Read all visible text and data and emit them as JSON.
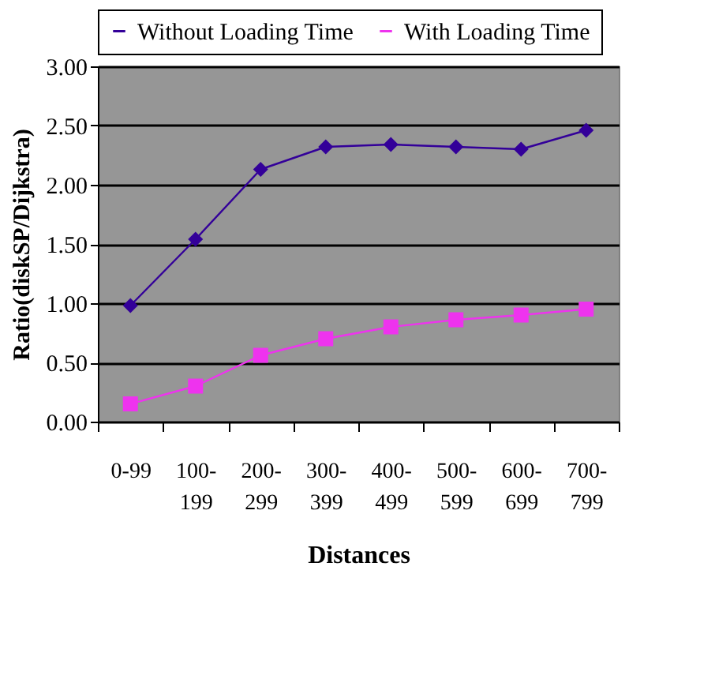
{
  "chart_data": {
    "type": "line",
    "xlabel": "Distances",
    "ylabel": "Ratio(diskSP/Dijkstra)",
    "categories": [
      "0-99",
      "100-199",
      "200-299",
      "300-399",
      "400-499",
      "500-599",
      "600-699",
      "700-799"
    ],
    "series": [
      {
        "name": "Without Loading Time",
        "color": "#330099",
        "marker": "diamond",
        "values": [
          0.98,
          1.54,
          2.13,
          2.32,
          2.34,
          2.32,
          2.3,
          2.46
        ]
      },
      {
        "name": "With Loading Time",
        "color": "#ee33ee",
        "marker": "square",
        "values": [
          0.15,
          0.3,
          0.56,
          0.7,
          0.8,
          0.86,
          0.9,
          0.95
        ]
      }
    ],
    "ylim": [
      0,
      3
    ],
    "yticks": [
      {
        "value": 0,
        "label": "0.00"
      },
      {
        "value": 0.5,
        "label": "0.50"
      },
      {
        "value": 1,
        "label": "1.00"
      },
      {
        "value": 1.5,
        "label": "1.50"
      },
      {
        "value": 2,
        "label": "2.00"
      },
      {
        "value": 2.5,
        "label": "2.50"
      },
      {
        "value": 3,
        "label": "3.00"
      }
    ],
    "grid": "y",
    "legend": "top",
    "line_style": "solid"
  }
}
